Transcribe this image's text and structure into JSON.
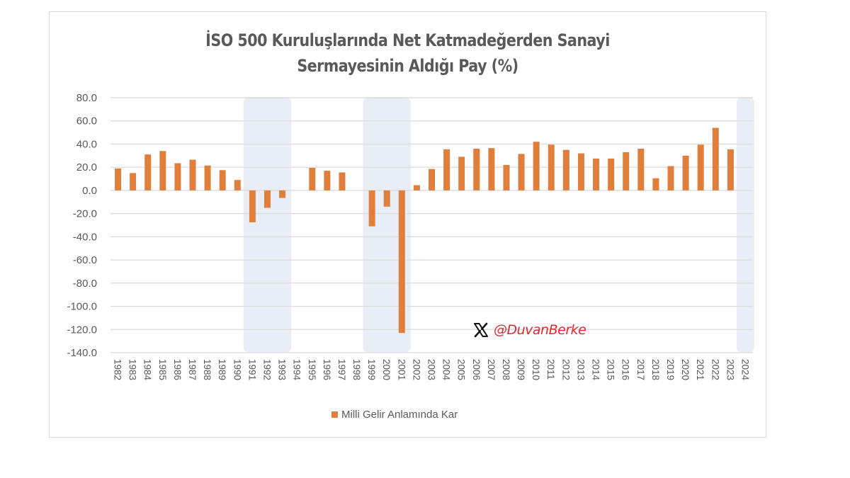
{
  "title": {
    "line1": "İSO 500 Kuruluşlarında Net Katmadeğerden Sanayi",
    "line2": "Sermayesinin Aldığı Pay (%)"
  },
  "legend": {
    "label": "Milli Gelir Anlamında Kar",
    "color": "#E07F3C"
  },
  "watermark": {
    "icon": "x-logo-icon",
    "handle": "@DuvanBerke",
    "color": "#E0292E"
  },
  "colors": {
    "bar": "#E07F3C",
    "gridline": "#D9D9D9",
    "shade": "#E9EDF6",
    "axis_text": "#595959"
  },
  "chart_data": {
    "type": "bar",
    "title": "İSO 500 Kuruluşlarında Net Katmadeğerden Sanayi Sermayesinin Aldığı Pay (%)",
    "xlabel": "",
    "ylabel": "",
    "ylim": [
      -140,
      80
    ],
    "yticks": [
      "80.0",
      "60.0",
      "40.0",
      "20.0",
      "0.0",
      "-20.0",
      "-40.0",
      "-60.0",
      "-80.0",
      "-100.0",
      "-120.0",
      "-140.0"
    ],
    "grid": true,
    "legend_position": "bottom",
    "categories": [
      "1982",
      "1983",
      "1984",
      "1985",
      "1986",
      "1987",
      "1988",
      "1989",
      "1990",
      "1991",
      "1992",
      "1993",
      "1994",
      "1995",
      "1996",
      "1997",
      "1998",
      "1999",
      "2000",
      "2001",
      "2002",
      "2003",
      "2004",
      "2005",
      "2006",
      "2007",
      "2008",
      "2009",
      "2010",
      "2011",
      "2012",
      "2013",
      "2014",
      "2015",
      "2016",
      "2017",
      "2018",
      "2019",
      "2020",
      "2021",
      "2022",
      "2023",
      "2024"
    ],
    "series": [
      {
        "name": "Milli Gelir Anlamında Kar",
        "values": [
          19,
          15,
          31,
          34,
          23.5,
          26.5,
          21.5,
          17.5,
          9,
          -27.5,
          -15,
          -6.5,
          null,
          19.5,
          17,
          15.5,
          null,
          -31,
          -14,
          -123,
          4.5,
          18.5,
          35.5,
          29,
          36,
          36.5,
          22,
          31.5,
          42,
          39.5,
          35,
          32,
          27.5,
          27.5,
          33,
          36,
          10.5,
          21,
          30,
          39.5,
          54,
          35.5,
          null
        ]
      }
    ],
    "annotations": [
      {
        "type": "shaded-region",
        "from": "1991",
        "to": "1993"
      },
      {
        "type": "shaded-region",
        "from": "1999",
        "to": "2001"
      },
      {
        "type": "shaded-region",
        "from": "2024",
        "to": "2024"
      }
    ]
  }
}
